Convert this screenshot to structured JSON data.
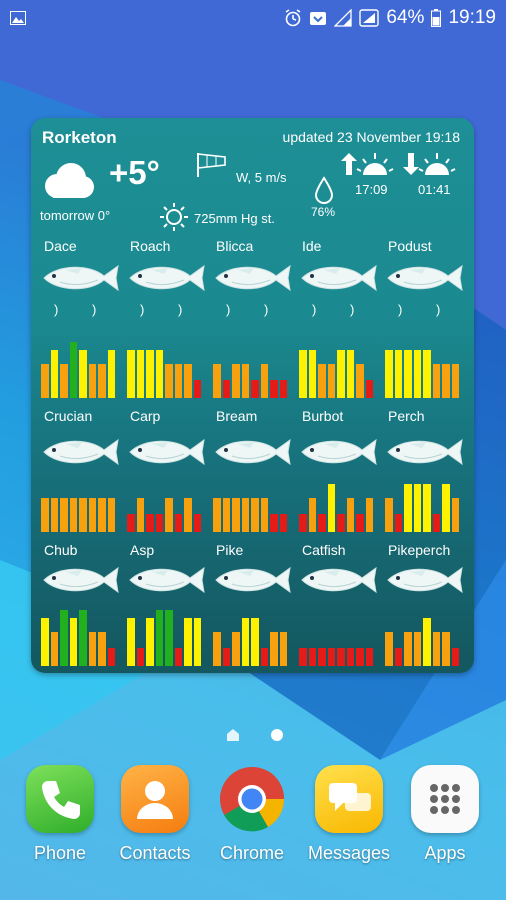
{
  "status_bar": {
    "battery": "64%",
    "time": "19:19"
  },
  "widget": {
    "location": "Rorketon",
    "updated": "updated 23 November 19:18",
    "temperature": "+5°",
    "tomorrow": "tomorrow 0°",
    "wind": "W, 5 m/s",
    "pressure": "725mm Hg st.",
    "humidity": "76%",
    "sunrise": "17:09",
    "sunset": "01:41",
    "colors": {
      "green": "#22b01e",
      "yellow": "#fff200",
      "orange": "#f7a10f",
      "red": "#e41b17"
    },
    "fish": [
      {
        "name": "Dace",
        "bars": [
          "o",
          "y",
          "o",
          "g",
          "y",
          "o",
          "o",
          "y"
        ]
      },
      {
        "name": "Roach",
        "bars": [
          "y",
          "y",
          "y",
          "y",
          "o",
          "o",
          "o",
          "r"
        ]
      },
      {
        "name": "Blicca",
        "bars": [
          "o",
          "r",
          "o",
          "o",
          "r",
          "o",
          "r",
          "r"
        ]
      },
      {
        "name": "Ide",
        "bars": [
          "y",
          "y",
          "o",
          "o",
          "y",
          "y",
          "o",
          "r"
        ]
      },
      {
        "name": "Podust",
        "bars": [
          "y",
          "y",
          "y",
          "y",
          "y",
          "o",
          "o",
          "o"
        ]
      },
      {
        "name": "Crucian",
        "bars": [
          "o",
          "o",
          "o",
          "o",
          "o",
          "o",
          "o",
          "o"
        ]
      },
      {
        "name": "Carp",
        "bars": [
          "r",
          "o",
          "r",
          "r",
          "o",
          "r",
          "o",
          "r"
        ]
      },
      {
        "name": "Bream",
        "bars": [
          "o",
          "o",
          "o",
          "o",
          "o",
          "o",
          "r",
          "r"
        ]
      },
      {
        "name": "Burbot",
        "bars": [
          "r",
          "o",
          "r",
          "y",
          "r",
          "o",
          "r",
          "o"
        ]
      },
      {
        "name": "Perch",
        "bars": [
          "o",
          "r",
          "y",
          "y",
          "y",
          "r",
          "y",
          "o"
        ]
      },
      {
        "name": "Chub",
        "bars": [
          "y",
          "o",
          "g",
          "y",
          "g",
          "o",
          "o",
          "r"
        ]
      },
      {
        "name": "Asp",
        "bars": [
          "y",
          "r",
          "y",
          "g",
          "g",
          "r",
          "y",
          "y"
        ]
      },
      {
        "name": "Pike",
        "bars": [
          "o",
          "r",
          "o",
          "y",
          "y",
          "r",
          "o",
          "o"
        ]
      },
      {
        "name": "Catfish",
        "bars": [
          "r",
          "r",
          "r",
          "r",
          "r",
          "r",
          "r",
          "r"
        ]
      },
      {
        "name": "Pikeperch",
        "bars": [
          "o",
          "r",
          "o",
          "o",
          "y",
          "o",
          "o",
          "r"
        ]
      }
    ]
  },
  "dock": [
    {
      "label": "Phone",
      "icon": "phone-icon"
    },
    {
      "label": "Contacts",
      "icon": "contacts-icon"
    },
    {
      "label": "Chrome",
      "icon": "chrome-icon"
    },
    {
      "label": "Messages",
      "icon": "messages-icon"
    },
    {
      "label": "Apps",
      "icon": "apps-grid-icon"
    }
  ]
}
